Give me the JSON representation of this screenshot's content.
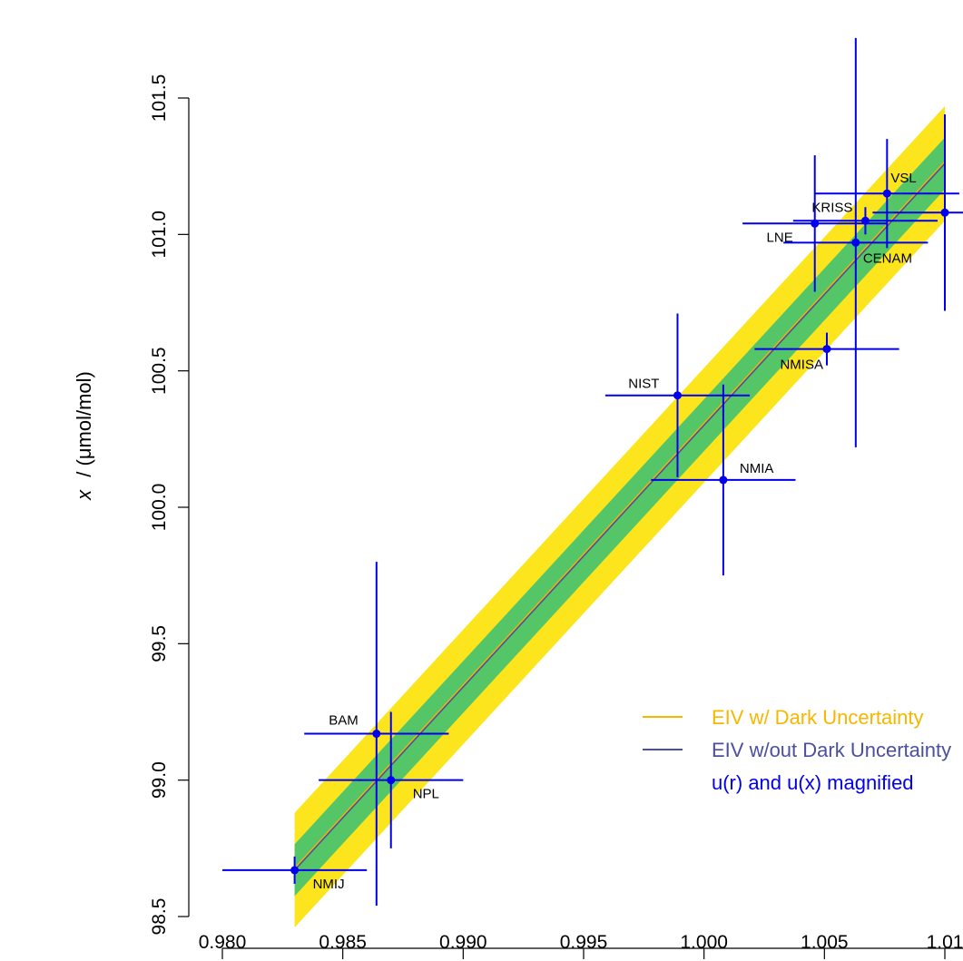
{
  "chart_data": {
    "type": "scatter",
    "xlabel": "",
    "ylabel_var": "x",
    "ylabel_unit": "/ (μmol/mol)",
    "xlim": [
      0.98,
      1.01
    ],
    "ylim": [
      98.5,
      101.5
    ],
    "x_ticks": [
      0.98,
      0.985,
      0.99,
      0.995,
      1.0,
      1.005,
      1.01
    ],
    "x_tick_labels": [
      "0.980",
      "0.985",
      "0.990",
      "0.995",
      "1.000",
      "1.005",
      "1.01"
    ],
    "y_ticks": [
      98.5,
      99.0,
      99.5,
      100.0,
      100.5,
      101.0,
      101.5
    ],
    "y_tick_labels": [
      "98.5",
      "99.0",
      "99.5",
      "100.0",
      "100.5",
      "101.0",
      "101.5"
    ],
    "points": [
      {
        "name": "NMIJ",
        "x": 0.983,
        "y": 98.67,
        "xerr": 0.003,
        "yerr": 0.05
      },
      {
        "name": "BAM",
        "x": 0.9864,
        "y": 99.17,
        "xerr": 0.003,
        "yerr": 0.63
      },
      {
        "name": "NPL",
        "x": 0.987,
        "y": 99.0,
        "xerr": 0.003,
        "yerr": 0.25
      },
      {
        "name": "NIST",
        "x": 0.9989,
        "y": 100.41,
        "xerr": 0.003,
        "yerr": 0.3
      },
      {
        "name": "NMIA",
        "x": 1.0008,
        "y": 100.1,
        "xerr": 0.003,
        "yerr": 0.35
      },
      {
        "name": "NMISA",
        "x": 1.0051,
        "y": 100.58,
        "xerr": 0.003,
        "yerr": 0.06
      },
      {
        "name": "LNE",
        "x": 1.0046,
        "y": 101.04,
        "xerr": 0.003,
        "yerr": 0.25
      },
      {
        "name": "CENAM",
        "x": 1.0063,
        "y": 100.97,
        "xerr": 0.003,
        "yerr": 0.75
      },
      {
        "name": "KRISS",
        "x": 1.0067,
        "y": 101.05,
        "xerr": 0.003,
        "yerr": 0.05
      },
      {
        "name": "VSL",
        "x": 1.0076,
        "y": 101.15,
        "xerr": 0.003,
        "yerr": 0.2
      },
      {
        "name": "",
        "x": 1.01,
        "y": 101.08,
        "xerr": 0.003,
        "yerr": 0.36
      }
    ],
    "fit_line": {
      "x": [
        0.983,
        1.01
      ],
      "y": [
        98.67,
        101.26
      ]
    },
    "bands": {
      "outer_halfwidth": 0.21,
      "inner_halfwidth": 0.095
    },
    "legend": {
      "entries": [
        {
          "label": "EIV w/ Dark Uncertainty",
          "color": "#F5B700"
        },
        {
          "label": "EIV w/out Dark Uncertainty",
          "color": "#4B4FA0"
        }
      ],
      "note": "u(r) and u(x) magnified"
    },
    "colors": {
      "points": "#0000EE",
      "outer_band": "#FDE51D",
      "inner_band": "#55C667",
      "fit_dark": "#F5B700",
      "fit_nodark": "#4B4FA0"
    }
  }
}
